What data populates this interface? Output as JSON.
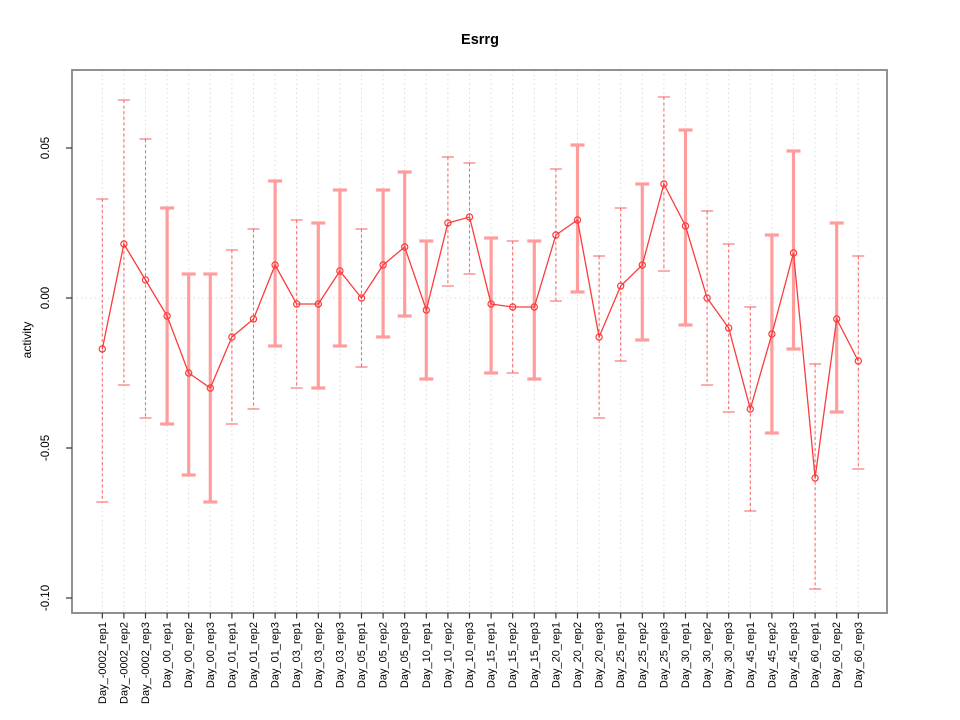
{
  "title": "Esrrg",
  "chart_data": {
    "type": "line",
    "title": "Esrrg",
    "xlabel": "",
    "ylabel": "activity",
    "ylim": [
      -0.105,
      0.076
    ],
    "yticks": [
      -0.1,
      -0.05,
      0.0,
      0.05
    ],
    "ytick_labels": [
      "-0.10",
      "-0.05",
      "0.00",
      "0.05"
    ],
    "grid": "vertical dotted line at every category; horizontal dotted line at y=0",
    "legend": "none",
    "marker": "open-circle",
    "error_bars": true,
    "categories": [
      "Day_-0002_rep1",
      "Day_-0002_rep2",
      "Day_-0002_rep3",
      "Day_00_rep1",
      "Day_00_rep2",
      "Day_00_rep3",
      "Day_01_rep1",
      "Day_01_rep2",
      "Day_01_rep3",
      "Day_03_rep1",
      "Day_03_rep2",
      "Day_03_rep3",
      "Day_05_rep1",
      "Day_05_rep2",
      "Day_05_rep3",
      "Day_10_rep1",
      "Day_10_rep2",
      "Day_10_rep3",
      "Day_15_rep1",
      "Day_15_rep2",
      "Day_15_rep3",
      "Day_20_rep1",
      "Day_20_rep2",
      "Day_20_rep3",
      "Day_25_rep1",
      "Day_25_rep2",
      "Day_25_rep3",
      "Day_30_rep1",
      "Day_30_rep2",
      "Day_30_rep3",
      "Day_45_rep1",
      "Day_45_rep2",
      "Day_45_rep3",
      "Day_60_rep1",
      "Day_60_rep2",
      "Day_60_rep3"
    ],
    "series": [
      {
        "name": "activity",
        "values": [
          -0.017,
          0.018,
          0.006,
          -0.006,
          -0.025,
          -0.03,
          -0.013,
          -0.007,
          0.011,
          -0.002,
          -0.002,
          0.009,
          0.0,
          0.011,
          0.017,
          -0.004,
          0.025,
          0.027,
          -0.002,
          -0.003,
          -0.003,
          0.021,
          0.026,
          -0.013,
          0.004,
          0.011,
          0.038,
          0.024,
          0.0,
          -0.01,
          -0.037,
          -0.012,
          0.015,
          -0.06,
          -0.007,
          -0.021
        ],
        "error_low": [
          -0.068,
          -0.029,
          -0.04,
          -0.042,
          -0.059,
          -0.068,
          -0.042,
          -0.037,
          -0.016,
          -0.03,
          -0.03,
          -0.016,
          -0.023,
          -0.013,
          -0.006,
          -0.027,
          0.004,
          0.008,
          -0.025,
          -0.025,
          -0.027,
          -0.001,
          0.002,
          -0.04,
          -0.021,
          -0.014,
          0.009,
          -0.009,
          -0.029,
          -0.038,
          -0.071,
          -0.045,
          -0.017,
          -0.097,
          -0.038,
          -0.057
        ],
        "error_high": [
          0.033,
          0.066,
          0.053,
          0.03,
          0.008,
          0.008,
          0.016,
          0.023,
          0.039,
          0.026,
          0.025,
          0.036,
          0.023,
          0.036,
          0.042,
          0.019,
          0.047,
          0.045,
          0.02,
          0.019,
          0.019,
          0.043,
          0.051,
          0.014,
          0.03,
          0.038,
          0.067,
          0.056,
          0.029,
          0.018,
          -0.003,
          0.021,
          0.049,
          -0.022,
          0.025,
          0.014
        ],
        "bar_style": [
          "dashed",
          "dashed",
          "dashed",
          "thick",
          "thick",
          "thick",
          "dashed",
          "dashed",
          "thick",
          "dashed",
          "thick",
          "thick",
          "dashed",
          "thick",
          "thick",
          "thick",
          "dashed",
          "dashed",
          "thick",
          "dashed",
          "thick",
          "dashed",
          "thick",
          "dashed",
          "dashed",
          "thick",
          "dashed",
          "thick",
          "dashed",
          "dashed",
          "dashed",
          "thick",
          "thick",
          "dashed",
          "thick",
          "dashed"
        ]
      }
    ]
  },
  "colors": {
    "line_and_points": "#fa3c3c",
    "errorbar_thin": "#fa6a6a",
    "errorbar_thick": "#ff9d9d",
    "gridline": "#dcdcdc",
    "box_border": "#858585",
    "tick_text": "#000000"
  }
}
